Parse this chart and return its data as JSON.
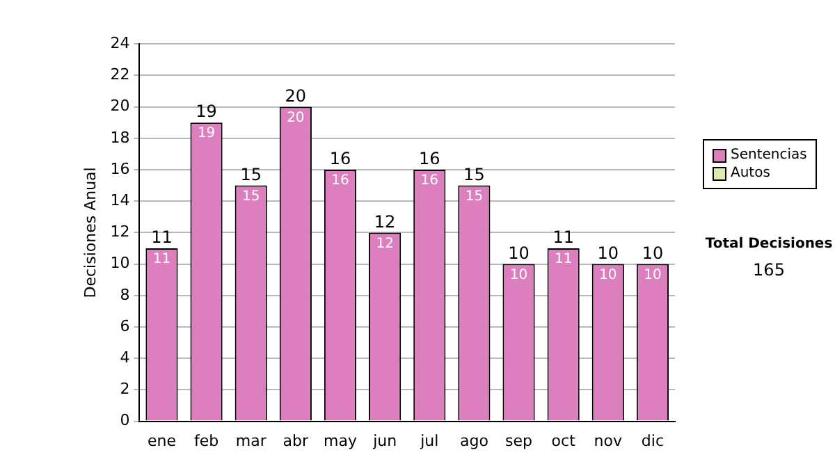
{
  "chart_data": {
    "type": "bar",
    "ylabel": "Decisiones Anual",
    "categories": [
      "ene",
      "feb",
      "mar",
      "abr",
      "may",
      "jun",
      "jul",
      "ago",
      "sep",
      "oct",
      "nov",
      "dic"
    ],
    "series": [
      {
        "name": "Sentencias",
        "color": "#dd7fbf",
        "values": [
          11,
          19,
          15,
          20,
          16,
          12,
          16,
          15,
          10,
          11,
          10,
          10
        ],
        "value_labels": [
          "11",
          "19",
          "15",
          "20",
          "16",
          "12",
          "16",
          "15",
          "10",
          "11",
          "10",
          "10"
        ]
      },
      {
        "name": "Autos",
        "color": "#ddeeaa",
        "values": [
          0,
          0,
          0,
          0,
          0,
          0,
          0,
          0,
          0,
          0,
          0,
          0
        ],
        "value_labels": [
          null,
          null,
          null,
          null,
          null,
          null,
          null,
          null,
          null,
          null,
          null,
          null
        ]
      }
    ],
    "stacked": true,
    "totals": [
      "11",
      "19",
      "15",
      "20",
      "16",
      "12",
      "16",
      "15",
      "10",
      "11",
      "10",
      "10"
    ],
    "ylim": [
      0,
      24
    ],
    "yticks": [
      0,
      2,
      4,
      6,
      8,
      10,
      12,
      14,
      16,
      18,
      20,
      22,
      24
    ],
    "grid": "y",
    "legend": "right",
    "annotations": [
      "Total Decisiones",
      "165"
    ]
  }
}
